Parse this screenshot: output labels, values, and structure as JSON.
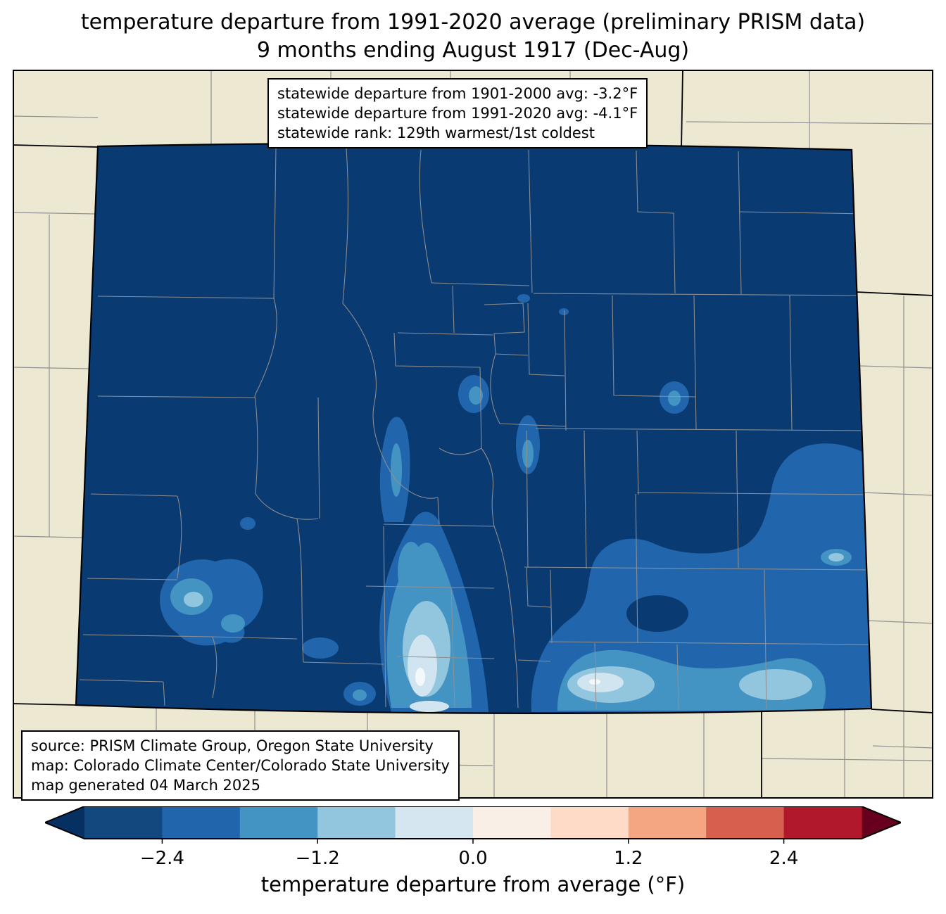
{
  "title": {
    "line1": "temperature departure from 1991-2020 average (preliminary PRISM data)",
    "line2": "9 months ending August 1917 (Dec-Aug)"
  },
  "stats_box": {
    "lines": [
      "statewide departure from 1901-2000 avg: -3.2°F",
      "statewide departure from 1991-2020 avg: -4.1°F",
      "statewide rank: 129th warmest/1st coldest"
    ]
  },
  "source_box": {
    "lines": [
      "source: PRISM Climate Group, Oregon State University",
      "map: Colorado Climate Center/Colorado State University",
      "map generated 04 March 2025"
    ]
  },
  "map": {
    "land_color": "#ece8d2",
    "county_line_color": "#909090",
    "state_border_color": "#000000",
    "palette": {
      "darkest": "#0a3a72",
      "medium_dark": "#2166ac",
      "medium": "#4393c3",
      "light": "#92c5de",
      "lighter": "#d1e5f0",
      "lightest": "#f3f8fb"
    }
  },
  "colorbar": {
    "range": [
      -3.0,
      3.0
    ],
    "below_color": "#053061",
    "above_color": "#67001f",
    "segment_colors": [
      "#11497f",
      "#2166ac",
      "#4393c3",
      "#92c5de",
      "#d6e6f0",
      "#f9efe7",
      "#fddbc7",
      "#f4a582",
      "#d6604d",
      "#b2182b"
    ],
    "ticks": [
      {
        "value": -2.4,
        "label": "−2.4"
      },
      {
        "value": -1.2,
        "label": "−1.2"
      },
      {
        "value": 0.0,
        "label": "0.0"
      },
      {
        "value": 1.2,
        "label": "1.2"
      },
      {
        "value": 2.4,
        "label": "2.4"
      }
    ],
    "axis_label": "temperature departure from average (°F)"
  }
}
